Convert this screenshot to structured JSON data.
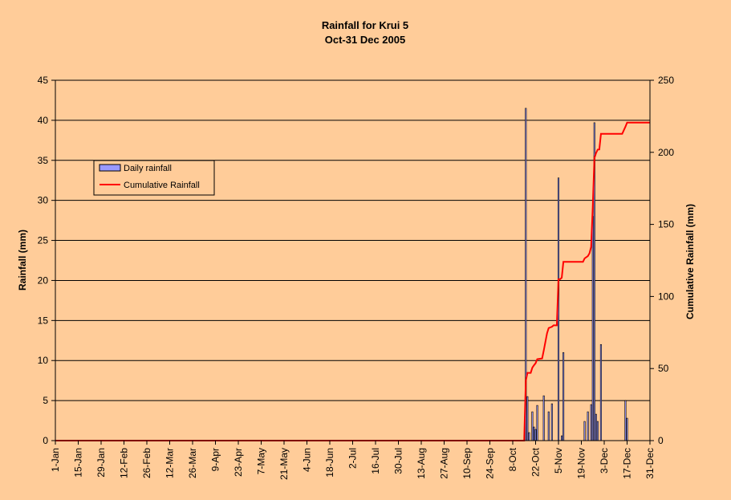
{
  "chart_data": {
    "type": "bar",
    "title": "Rainfall for Krui 5",
    "subtitle": "Oct-31 Dec 2005",
    "ylabel": "Rainfall (mm)",
    "y2label": "Cumulative Rainfall (mm)",
    "ylim": [
      0,
      45
    ],
    "y2lim": [
      0,
      250
    ],
    "yticks": [
      0,
      5,
      10,
      15,
      20,
      25,
      30,
      35,
      40,
      45
    ],
    "y2ticks": [
      0,
      50,
      100,
      150,
      200,
      250
    ],
    "grid": true,
    "legend_position": "left",
    "x_day_range": [
      1,
      365
    ],
    "xticks": [
      {
        "day": 1,
        "label": "1-Jan"
      },
      {
        "day": 15,
        "label": "15-Jan"
      },
      {
        "day": 29,
        "label": "29-Jan"
      },
      {
        "day": 43,
        "label": "12-Feb"
      },
      {
        "day": 57,
        "label": "26-Feb"
      },
      {
        "day": 71,
        "label": "12-Mar"
      },
      {
        "day": 85,
        "label": "26-Mar"
      },
      {
        "day": 99,
        "label": "9-Apr"
      },
      {
        "day": 113,
        "label": "23-Apr"
      },
      {
        "day": 127,
        "label": "7-May"
      },
      {
        "day": 141,
        "label": "21-May"
      },
      {
        "day": 155,
        "label": "4-Jun"
      },
      {
        "day": 169,
        "label": "18-Jun"
      },
      {
        "day": 183,
        "label": "2-Jul"
      },
      {
        "day": 197,
        "label": "16-Jul"
      },
      {
        "day": 211,
        "label": "30-Jul"
      },
      {
        "day": 225,
        "label": "13-Aug"
      },
      {
        "day": 239,
        "label": "27-Aug"
      },
      {
        "day": 253,
        "label": "10-Sep"
      },
      {
        "day": 267,
        "label": "24-Sep"
      },
      {
        "day": 281,
        "label": "8-Oct"
      },
      {
        "day": 295,
        "label": "22-Oct"
      },
      {
        "day": 309,
        "label": "5-Nov"
      },
      {
        "day": 323,
        "label": "19-Nov"
      },
      {
        "day": 337,
        "label": "3-Dec"
      },
      {
        "day": 351,
        "label": "17-Dec"
      },
      {
        "day": 365,
        "label": "31-Dec"
      }
    ],
    "series": [
      {
        "name": "Daily rainfall",
        "type": "bar",
        "axis": "left",
        "color": "#9999FF",
        "points": [
          {
            "day": 289,
            "value": 41.5
          },
          {
            "day": 290,
            "value": 5.5
          },
          {
            "day": 291,
            "value": 1.0
          },
          {
            "day": 293,
            "value": 3.6
          },
          {
            "day": 294,
            "value": 1.7
          },
          {
            "day": 295,
            "value": 1.4
          },
          {
            "day": 296,
            "value": 4.4
          },
          {
            "day": 300,
            "value": 5.6
          },
          {
            "day": 303,
            "value": 3.6
          },
          {
            "day": 305,
            "value": 4.6
          },
          {
            "day": 309,
            "value": 32.8
          },
          {
            "day": 311,
            "value": 0.6
          },
          {
            "day": 312,
            "value": 11.0
          },
          {
            "day": 325,
            "value": 2.4
          },
          {
            "day": 327,
            "value": 3.6
          },
          {
            "day": 329,
            "value": 4.5
          },
          {
            "day": 330,
            "value": 28.0
          },
          {
            "day": 331,
            "value": 39.7
          },
          {
            "day": 332,
            "value": 3.3
          },
          {
            "day": 333,
            "value": 2.4
          },
          {
            "day": 335,
            "value": 12.0
          },
          {
            "day": 350,
            "value": 5.0
          },
          {
            "day": 351,
            "value": 2.8
          }
        ]
      },
      {
        "name": "Cumulative Rainfall",
        "type": "line",
        "axis": "right",
        "color": "#FF0000",
        "points": [
          {
            "day": 1,
            "value": 0
          },
          {
            "day": 288,
            "value": 0
          },
          {
            "day": 289,
            "value": 41.5
          },
          {
            "day": 290,
            "value": 47
          },
          {
            "day": 292,
            "value": 47
          },
          {
            "day": 293,
            "value": 50.6
          },
          {
            "day": 294,
            "value": 52.3
          },
          {
            "day": 295,
            "value": 53.7
          },
          {
            "day": 296,
            "value": 56.5
          },
          {
            "day": 299,
            "value": 57
          },
          {
            "day": 300,
            "value": 62.6
          },
          {
            "day": 302,
            "value": 74.5
          },
          {
            "day": 303,
            "value": 78.1
          },
          {
            "day": 305,
            "value": 79
          },
          {
            "day": 306,
            "value": 80
          },
          {
            "day": 308,
            "value": 80
          },
          {
            "day": 309,
            "value": 112
          },
          {
            "day": 310,
            "value": 112
          },
          {
            "day": 311,
            "value": 113
          },
          {
            "day": 312,
            "value": 124
          },
          {
            "day": 324,
            "value": 124
          },
          {
            "day": 325,
            "value": 126.4
          },
          {
            "day": 327,
            "value": 128
          },
          {
            "day": 328,
            "value": 130
          },
          {
            "day": 329,
            "value": 134.5
          },
          {
            "day": 330,
            "value": 162.5
          },
          {
            "day": 331,
            "value": 196
          },
          {
            "day": 332,
            "value": 199.5
          },
          {
            "day": 333,
            "value": 201.9
          },
          {
            "day": 334,
            "value": 202
          },
          {
            "day": 335,
            "value": 212.8
          },
          {
            "day": 348,
            "value": 212.8
          },
          {
            "day": 350,
            "value": 217.8
          },
          {
            "day": 351,
            "value": 220.6
          },
          {
            "day": 365,
            "value": 220.6
          }
        ]
      }
    ]
  }
}
